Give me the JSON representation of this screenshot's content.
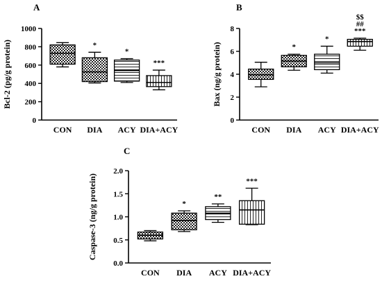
{
  "chart_data": [
    {
      "type": "box",
      "panel_label": "A",
      "ylabel": "Bcl-2 (pg/g protein)",
      "ylim": [
        0,
        1000
      ],
      "yticks": [
        0,
        200,
        400,
        600,
        800,
        1000
      ],
      "categories": [
        "CON",
        "DIA",
        "ACY",
        "DIA+ACY"
      ],
      "boxes": [
        {
          "min": 580,
          "q1": 610,
          "median": 730,
          "q3": 820,
          "max": 845,
          "pattern": "checker",
          "annotation": ""
        },
        {
          "min": 405,
          "q1": 420,
          "median": 525,
          "q3": 680,
          "max": 740,
          "pattern": "checker",
          "annotation": "*"
        },
        {
          "min": 410,
          "q1": 425,
          "median": 540,
          "q3": 655,
          "max": 670,
          "pattern": "hlines",
          "annotation": "*"
        },
        {
          "min": 330,
          "q1": 365,
          "median": 410,
          "q3": 485,
          "max": 545,
          "pattern": "vlines",
          "annotation": "***"
        }
      ]
    },
    {
      "type": "box",
      "panel_label": "B",
      "ylabel": "Bax (ng/g protein)",
      "ylim": [
        0,
        8
      ],
      "yticks": [
        0,
        2,
        4,
        6,
        8
      ],
      "categories": [
        "CON",
        "DIA",
        "ACY",
        "DIA+ACY"
      ],
      "boxes": [
        {
          "min": 2.9,
          "q1": 3.55,
          "median": 3.95,
          "q3": 4.45,
          "max": 5.05,
          "pattern": "checker",
          "annotation": ""
        },
        {
          "min": 4.35,
          "q1": 4.65,
          "median": 5.15,
          "q3": 5.65,
          "max": 5.75,
          "pattern": "checker",
          "annotation": "*"
        },
        {
          "min": 4.1,
          "q1": 4.4,
          "median": 5.0,
          "q3": 5.75,
          "max": 6.45,
          "pattern": "hlines",
          "annotation": "*"
        },
        {
          "min": 6.1,
          "q1": 6.45,
          "median": 6.85,
          "q3": 7.05,
          "max": 7.15,
          "pattern": "vlines",
          "annotation": "***",
          "annotation_lines": [
            "$$",
            "##",
            "***"
          ]
        }
      ]
    },
    {
      "type": "box",
      "panel_label": "C",
      "ylabel": "Caspase-3 (ng/g protein)",
      "ylim": [
        0,
        2.0
      ],
      "yticks": [
        "0.0",
        "0.5",
        "1.0",
        "1.5",
        "2.0"
      ],
      "categories": [
        "CON",
        "DIA",
        "ACY",
        "DIA+ACY"
      ],
      "boxes": [
        {
          "min": 0.48,
          "q1": 0.52,
          "median": 0.6,
          "q3": 0.67,
          "max": 0.7,
          "pattern": "checker",
          "annotation": ""
        },
        {
          "min": 0.68,
          "q1": 0.72,
          "median": 0.92,
          "q3": 1.08,
          "max": 1.13,
          "pattern": "checker",
          "annotation": "*"
        },
        {
          "min": 0.88,
          "q1": 0.94,
          "median": 1.08,
          "q3": 1.22,
          "max": 1.28,
          "pattern": "hlines",
          "annotation": "**"
        },
        {
          "min": 0.83,
          "q1": 0.84,
          "median": 1.15,
          "q3": 1.35,
          "max": 1.62,
          "pattern": "vlines",
          "annotation": "***"
        }
      ]
    }
  ]
}
